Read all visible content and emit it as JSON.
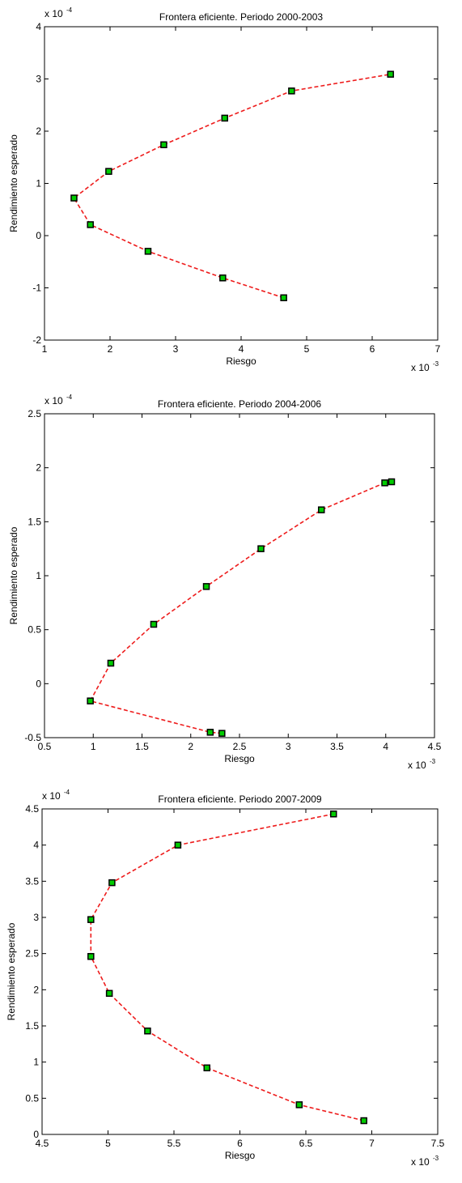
{
  "chart_data": [
    {
      "type": "line",
      "title": "Frontera eficiente. Periodo 2000-2003",
      "xlabel": "Riesgo",
      "ylabel": "Rendimiento esperado",
      "x_multiplier": {
        "base": "x 10",
        "exp": "-3"
      },
      "y_multiplier": {
        "base": "x 10",
        "exp": "-4"
      },
      "xlim": [
        1,
        7
      ],
      "ylim": [
        -2,
        4
      ],
      "xticks": [
        1,
        2,
        3,
        4,
        5,
        6,
        7
      ],
      "yticks": [
        -2,
        -1,
        0,
        1,
        2,
        3,
        4
      ],
      "xtick_labels": [
        "1",
        "2",
        "3",
        "4",
        "5",
        "6",
        "7"
      ],
      "ytick_labels": [
        "-2",
        "-1",
        "0",
        "1",
        "2",
        "3",
        "4"
      ],
      "series": [
        {
          "x": [
            4.65,
            3.72,
            2.58,
            1.7,
            1.45,
            1.98,
            2.82,
            3.75,
            4.77,
            6.28
          ],
          "y": [
            -1.19,
            -0.81,
            -0.3,
            0.21,
            0.72,
            1.23,
            1.74,
            2.25,
            2.77,
            3.09
          ]
        }
      ],
      "line_color": "#ee1c1c",
      "marker_fill": "#00cc00",
      "marker_edge": "#000000",
      "grid": false
    },
    {
      "type": "line",
      "title": "Frontera eficiente. Periodo 2004-2006",
      "xlabel": "Riesgo",
      "ylabel": "Rendimiento esperado",
      "x_multiplier": {
        "base": "x 10",
        "exp": "-3"
      },
      "y_multiplier": {
        "base": "x 10",
        "exp": "-4"
      },
      "xlim": [
        0.5,
        4.5
      ],
      "ylim": [
        -0.5,
        2.5
      ],
      "xticks": [
        0.5,
        1,
        1.5,
        2,
        2.5,
        3,
        3.5,
        4,
        4.5
      ],
      "yticks": [
        -0.5,
        0,
        0.5,
        1,
        1.5,
        2,
        2.5
      ],
      "xtick_labels": [
        "0.5",
        "1",
        "1.5",
        "2",
        "2.5",
        "3",
        "3.5",
        "4",
        "4.5"
      ],
      "ytick_labels": [
        "-0.5",
        "0",
        "0.5",
        "1",
        "1.5",
        "2",
        "2.5"
      ],
      "series": [
        {
          "x": [
            2.32,
            2.2,
            0.97,
            1.18,
            1.62,
            2.16,
            2.72,
            3.34,
            3.99,
            4.06
          ],
          "y": [
            -0.46,
            -0.45,
            -0.16,
            0.19,
            0.55,
            0.9,
            1.25,
            1.61,
            1.86,
            1.87
          ]
        }
      ],
      "line_color": "#ee1c1c",
      "marker_fill": "#00cc00",
      "marker_edge": "#000000",
      "grid": false
    },
    {
      "type": "line",
      "title": "Frontera eficiente. Periodo 2007-2009",
      "xlabel": "Riesgo",
      "ylabel": "Rendimiento esperado",
      "x_multiplier": {
        "base": "x 10",
        "exp": "-3"
      },
      "y_multiplier": {
        "base": "x 10",
        "exp": "-4"
      },
      "xlim": [
        4.5,
        7.5
      ],
      "ylim": [
        0,
        4.5
      ],
      "xticks": [
        4.5,
        5,
        5.5,
        6,
        6.5,
        7,
        7.5
      ],
      "yticks": [
        0,
        0.5,
        1,
        1.5,
        2,
        2.5,
        3,
        3.5,
        4,
        4.5
      ],
      "xtick_labels": [
        "4.5",
        "5",
        "5.5",
        "6",
        "6.5",
        "7",
        "7.5"
      ],
      "ytick_labels": [
        "0",
        "0.5",
        "1",
        "1.5",
        "2",
        "2.5",
        "3",
        "3.5",
        "4",
        "4.5"
      ],
      "series": [
        {
          "x": [
            6.94,
            6.45,
            5.75,
            5.3,
            5.01,
            4.87,
            4.87,
            5.03,
            5.53,
            6.71
          ],
          "y": [
            0.19,
            0.41,
            0.92,
            1.43,
            1.95,
            2.46,
            2.97,
            3.48,
            4.0,
            4.43
          ]
        }
      ],
      "line_color": "#ee1c1c",
      "marker_fill": "#00cc00",
      "marker_edge": "#000000",
      "grid": false
    }
  ]
}
